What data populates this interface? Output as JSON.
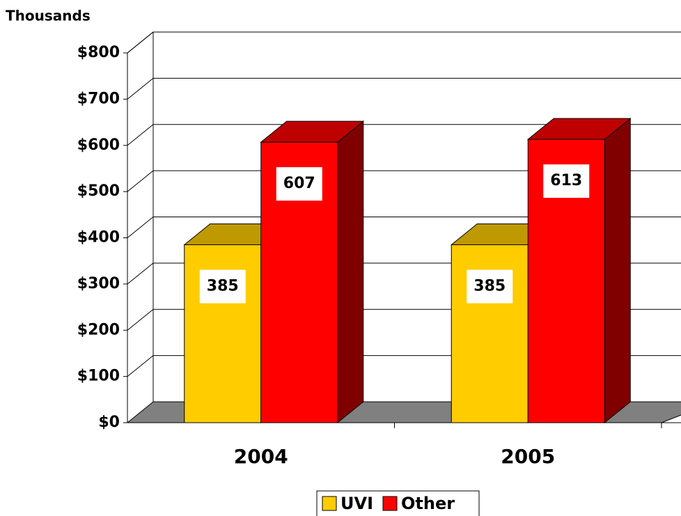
{
  "chart_data": {
    "type": "bar3d",
    "y_axis_label": "Thousands",
    "categories": [
      "2004",
      "2005"
    ],
    "series": [
      {
        "name": "UVI",
        "color": "#ffcc00",
        "values": [
          385,
          385
        ]
      },
      {
        "name": "Other",
        "color": "#ff0000",
        "values": [
          607,
          613
        ]
      }
    ],
    "ylim": [
      0,
      800
    ],
    "yticks": [
      {
        "value": 0,
        "label": "$0"
      },
      {
        "value": 100,
        "label": "$100"
      },
      {
        "value": 200,
        "label": "$200"
      },
      {
        "value": 300,
        "label": "$300"
      },
      {
        "value": 400,
        "label": "$400"
      },
      {
        "value": 500,
        "label": "$500"
      },
      {
        "value": 600,
        "label": "$600"
      },
      {
        "value": 700,
        "label": "$700"
      },
      {
        "value": 800,
        "label": "$800"
      }
    ],
    "grid": true,
    "legend": "bottom"
  }
}
